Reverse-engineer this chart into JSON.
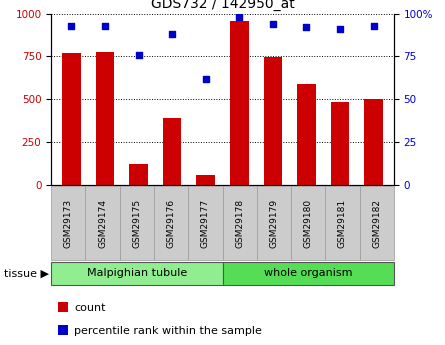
{
  "title": "GDS732 / 142950_at",
  "categories": [
    "GSM29173",
    "GSM29174",
    "GSM29175",
    "GSM29176",
    "GSM29177",
    "GSM29178",
    "GSM29179",
    "GSM29180",
    "GSM29181",
    "GSM29182"
  ],
  "counts": [
    770,
    775,
    120,
    390,
    55,
    960,
    745,
    590,
    485,
    500
  ],
  "percentiles": [
    93,
    93,
    76,
    88,
    62,
    98,
    94,
    92,
    91,
    93
  ],
  "bar_color": "#cc0000",
  "dot_color": "#0000cc",
  "ylim_left": [
    0,
    1000
  ],
  "ylim_right": [
    0,
    100
  ],
  "yticks_left": [
    0,
    250,
    500,
    750,
    1000
  ],
  "yticks_right": [
    0,
    25,
    50,
    75,
    100
  ],
  "tissue_groups": [
    {
      "label": "Malpighian tubule",
      "start": 0,
      "end": 5,
      "color": "#90ee90"
    },
    {
      "label": "whole organism",
      "start": 5,
      "end": 10,
      "color": "#55dd55"
    }
  ],
  "tissue_label": "tissue ▶",
  "legend_count_label": "count",
  "legend_percentile_label": "percentile rank within the sample",
  "tick_bg_color": "#cccccc",
  "tick_edge_color": "#999999"
}
